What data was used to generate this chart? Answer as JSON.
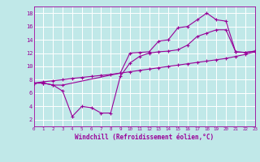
{
  "xlabel": "Windchill (Refroidissement éolien,°C)",
  "bg_color": "#c0e8e8",
  "grid_color": "#ffffff",
  "line_color": "#990099",
  "line1_x": [
    0,
    1,
    2,
    3,
    4,
    5,
    6,
    7,
    8,
    9,
    10,
    11,
    12,
    13,
    14,
    15,
    16,
    17,
    18,
    19,
    20,
    21,
    22,
    23
  ],
  "line1_y": [
    7.5,
    7.7,
    7.85,
    8.0,
    8.2,
    8.35,
    8.5,
    8.65,
    8.8,
    9.0,
    9.2,
    9.4,
    9.6,
    9.8,
    10.0,
    10.2,
    10.4,
    10.6,
    10.8,
    11.0,
    11.2,
    11.5,
    11.8,
    12.2
  ],
  "line2_x": [
    0,
    1,
    2,
    3,
    9,
    10,
    11,
    12,
    13,
    14,
    15,
    16,
    17,
    18,
    19,
    20,
    21,
    22,
    23
  ],
  "line2_y": [
    7.5,
    7.5,
    7.2,
    7.2,
    9.0,
    12.0,
    12.1,
    12.2,
    13.8,
    14.0,
    15.8,
    16.0,
    17.0,
    18.0,
    17.0,
    16.8,
    12.2,
    12.1,
    12.3
  ],
  "line3_x": [
    0,
    1,
    2,
    3,
    4,
    5,
    6,
    7,
    8,
    9,
    10,
    11,
    12,
    13,
    14,
    15,
    16,
    17,
    18,
    19,
    20,
    21,
    22,
    23
  ],
  "line3_y": [
    7.5,
    7.5,
    7.2,
    6.3,
    2.5,
    4.0,
    3.8,
    3.0,
    3.0,
    8.5,
    10.5,
    11.5,
    12.0,
    12.2,
    12.3,
    12.5,
    13.2,
    14.5,
    15.0,
    15.5,
    15.5,
    12.2,
    12.1,
    12.3
  ],
  "xlim": [
    0,
    23
  ],
  "ylim": [
    1,
    19
  ],
  "yticks": [
    2,
    4,
    6,
    8,
    10,
    12,
    14,
    16,
    18
  ],
  "xticks": [
    0,
    1,
    2,
    3,
    4,
    5,
    6,
    7,
    8,
    9,
    10,
    11,
    12,
    13,
    14,
    15,
    16,
    17,
    18,
    19,
    20,
    21,
    22,
    23
  ]
}
